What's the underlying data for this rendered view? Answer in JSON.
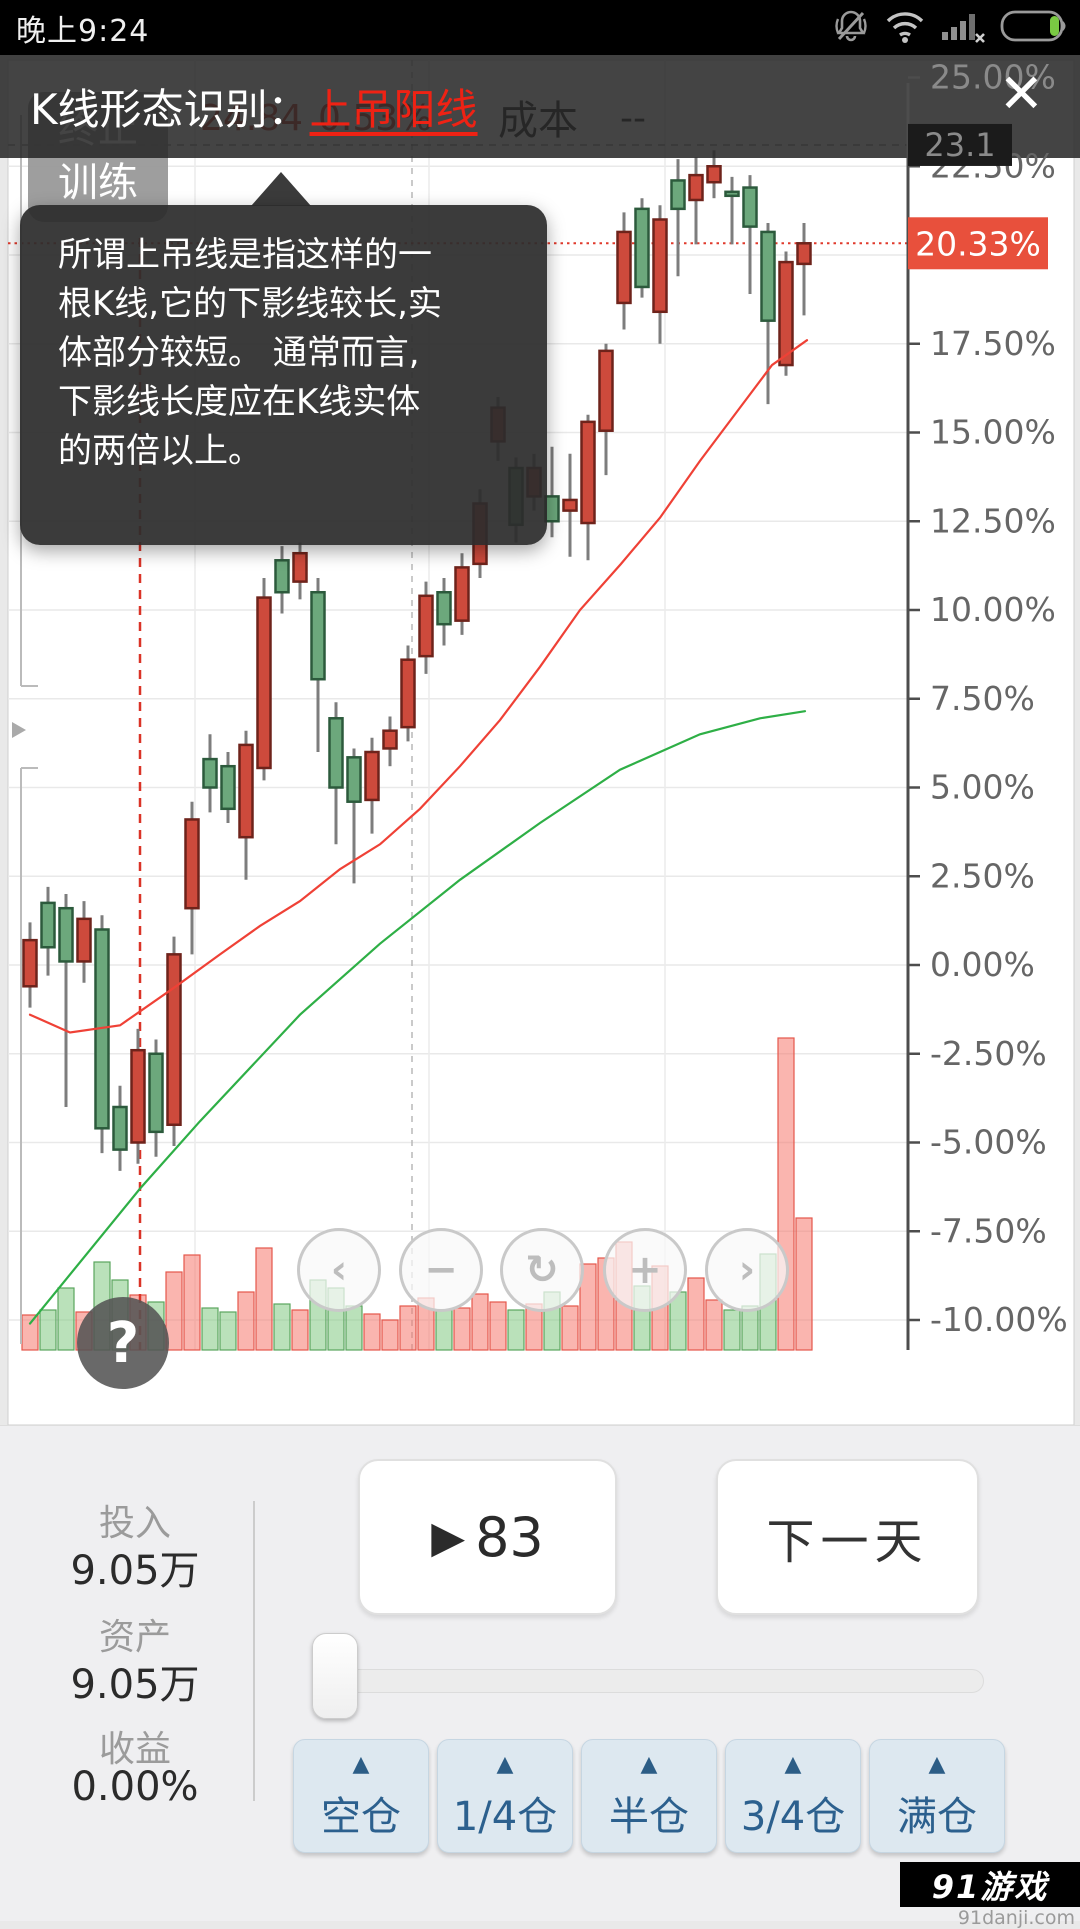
{
  "status_bar": {
    "time": "晚上9:24",
    "icons": [
      "mute-bell-icon",
      "wifi-icon",
      "signal-icon",
      "battery-icon"
    ]
  },
  "header": {
    "title": "K线形态识别：",
    "pattern_link": "上吊阳线",
    "close_label": "✕"
  },
  "stop_training_button": {
    "line1": "终止",
    "line2": "训练"
  },
  "tooltip": {
    "lines": [
      "所谓上吊线是指这样的一",
      "根K线,它的下影线较长,实",
      "体部分较短。 通常而言,",
      "下影线长度应在K线实体",
      "的两倍以上。"
    ]
  },
  "chart_legend": {
    "price": "24.84",
    "change": "0.53%",
    "cost_label": "成本",
    "cost_value": "--"
  },
  "controls": {
    "help": "?",
    "buttons": [
      "‹",
      "−",
      "↻",
      "+",
      "›"
    ]
  },
  "panel": {
    "stats": [
      {
        "label": "投入",
        "value": "9.05万"
      },
      {
        "label": "资产",
        "value": "9.05万"
      },
      {
        "label": "收益",
        "value": "0.00%"
      }
    ],
    "play_button": "83",
    "play_glyph": "▶",
    "next_day": "下一天",
    "position_buttons": [
      "空仓",
      "1/4仓",
      "半仓",
      "3/4仓",
      "满仓"
    ]
  },
  "watermark": {
    "logo": "91游戏",
    "domain": "91danji.com"
  },
  "chart_data": {
    "type": "candlestick",
    "note": "Chinese convention: red = bullish (close>open), green = bearish",
    "up_color": "#cd4a3c",
    "up_border": "#6e231b",
    "down_color": "#6ca87c",
    "down_border": "#2c5a3c",
    "wick_color": "#7d7d7d",
    "axis_labels": [
      {
        "text": "25.00%",
        "pct": 25,
        "dim": true
      },
      {
        "text": "22.50%",
        "pct": 22.5
      },
      {
        "text": "17.50%",
        "pct": 17.5
      },
      {
        "text": "15.00%",
        "pct": 15
      },
      {
        "text": "12.50%",
        "pct": 12.5
      },
      {
        "text": "10.00%",
        "pct": 10
      },
      {
        "text": "7.50%",
        "pct": 7.5
      },
      {
        "text": "5.00%",
        "pct": 5
      },
      {
        "text": "2.50%",
        "pct": 2.5
      },
      {
        "text": "0.00%",
        "pct": 0
      },
      {
        "text": "-2.50%",
        "pct": -2.5
      },
      {
        "text": "-5.00%",
        "pct": -5
      },
      {
        "text": "-7.50%",
        "pct": -7.5
      },
      {
        "text": "-10.00%",
        "pct": -10
      }
    ],
    "grid_pcts": [
      22.5,
      20,
      17.5,
      15,
      12.5,
      10,
      7.5,
      5,
      2.5,
      0,
      -2.5,
      -5,
      -7.5,
      -10
    ],
    "cost_badge": {
      "text": "23.1",
      "pct": 23.1
    },
    "price_badge": {
      "text": "20.33%",
      "pct": 20.33,
      "color": "#e8503c"
    },
    "event_day_index": 6,
    "view_marker_index": 21,
    "candles": [
      [
        -0.6,
        0.7,
        -1.2,
        1.2
      ],
      [
        1.75,
        0.5,
        -0.3,
        2.2
      ],
      [
        1.6,
        0.1,
        -4.0,
        2.0
      ],
      [
        0.1,
        1.3,
        -0.5,
        1.8
      ],
      [
        1.0,
        -4.6,
        -5.3,
        1.4
      ],
      [
        -4.0,
        -5.2,
        -5.8,
        -3.4
      ],
      [
        -5.0,
        -2.4,
        -5.6,
        -1.8
      ],
      [
        -2.5,
        -4.7,
        -5.4,
        -2.1
      ],
      [
        -4.5,
        0.3,
        -5.1,
        0.8
      ],
      [
        1.6,
        4.1,
        0.3,
        4.6
      ],
      [
        5.8,
        5.0,
        4.3,
        6.5
      ],
      [
        5.6,
        4.4,
        4.0,
        6.0
      ],
      [
        3.6,
        6.2,
        2.4,
        6.6
      ],
      [
        5.55,
        10.35,
        5.2,
        10.9
      ],
      [
        11.4,
        10.5,
        9.9,
        11.8
      ],
      [
        10.8,
        11.6,
        10.3,
        11.9
      ],
      [
        10.5,
        8.05,
        6.0,
        10.9
      ],
      [
        6.95,
        5.0,
        3.4,
        7.4
      ],
      [
        5.85,
        4.6,
        2.3,
        6.1
      ],
      [
        4.65,
        6.0,
        3.7,
        6.4
      ],
      [
        6.1,
        6.6,
        5.6,
        7.0
      ],
      [
        6.7,
        8.6,
        6.3,
        9.0
      ],
      [
        8.7,
        10.4,
        8.2,
        10.8
      ],
      [
        10.5,
        9.6,
        9.0,
        10.9
      ],
      [
        9.7,
        11.2,
        9.3,
        11.6
      ],
      [
        11.3,
        13.0,
        10.9,
        13.4
      ],
      [
        14.75,
        15.7,
        14.2,
        16.0
      ],
      [
        14.0,
        12.4,
        11.9,
        14.3
      ],
      [
        13.2,
        14.0,
        12.8,
        14.4
      ],
      [
        13.2,
        12.5,
        12.05,
        14.6
      ],
      [
        12.8,
        13.1,
        11.5,
        14.4
      ],
      [
        12.45,
        15.3,
        11.4,
        15.5
      ],
      [
        15.05,
        17.3,
        13.8,
        17.5
      ],
      [
        18.65,
        20.65,
        17.9,
        21.2
      ],
      [
        21.3,
        19.1,
        18.8,
        21.6
      ],
      [
        18.4,
        21.0,
        17.5,
        21.4
      ],
      [
        22.1,
        21.3,
        19.4,
        22.7
      ],
      [
        21.55,
        22.25,
        20.3,
        22.75
      ],
      [
        22.05,
        22.5,
        21.6,
        22.95
      ],
      [
        21.78,
        21.7,
        20.3,
        22.2
      ],
      [
        21.9,
        20.8,
        18.9,
        22.25
      ],
      [
        20.65,
        18.15,
        15.8,
        20.9
      ],
      [
        16.9,
        19.8,
        16.6,
        20.1
      ],
      [
        19.75,
        20.33,
        18.3,
        20.9
      ]
    ],
    "volume": [
      35,
      40,
      62,
      38,
      88,
      70,
      55,
      48,
      78,
      95,
      42,
      38,
      58,
      102,
      46,
      40,
      70,
      62,
      44,
      36,
      30,
      44,
      52,
      40,
      42,
      56,
      48,
      40,
      46,
      58,
      44,
      86,
      92,
      108,
      64,
      84,
      58,
      72,
      50,
      40,
      44,
      96,
      312,
      132
    ],
    "ma_fast": {
      "name": "MA-fast",
      "color": "#ef4136",
      "points": [
        [
          30,
          -1.4
        ],
        [
          70,
          -1.9
        ],
        [
          120,
          -1.7
        ],
        [
          176,
          -0.6
        ],
        [
          220,
          0.3
        ],
        [
          260,
          1.1
        ],
        [
          300,
          1.8
        ],
        [
          340,
          2.7
        ],
        [
          380,
          3.4
        ],
        [
          420,
          4.4
        ],
        [
          460,
          5.6
        ],
        [
          500,
          6.9
        ],
        [
          540,
          8.4
        ],
        [
          580,
          10.0
        ],
        [
          621,
          11.3
        ],
        [
          660,
          12.6
        ],
        [
          700,
          14.2
        ],
        [
          740,
          15.7
        ],
        [
          772,
          16.9
        ],
        [
          807,
          17.6
        ]
      ]
    },
    "ma_slow": {
      "name": "MA-slow",
      "color": "#2eaf46",
      "points": [
        [
          30,
          -10.1
        ],
        [
          140,
          -6.3
        ],
        [
          200,
          -4.4
        ],
        [
          300,
          -1.4
        ],
        [
          380,
          0.6
        ],
        [
          460,
          2.4
        ],
        [
          540,
          4.0
        ],
        [
          620,
          5.5
        ],
        [
          700,
          6.5
        ],
        [
          760,
          6.95
        ],
        [
          805,
          7.15
        ]
      ]
    }
  }
}
